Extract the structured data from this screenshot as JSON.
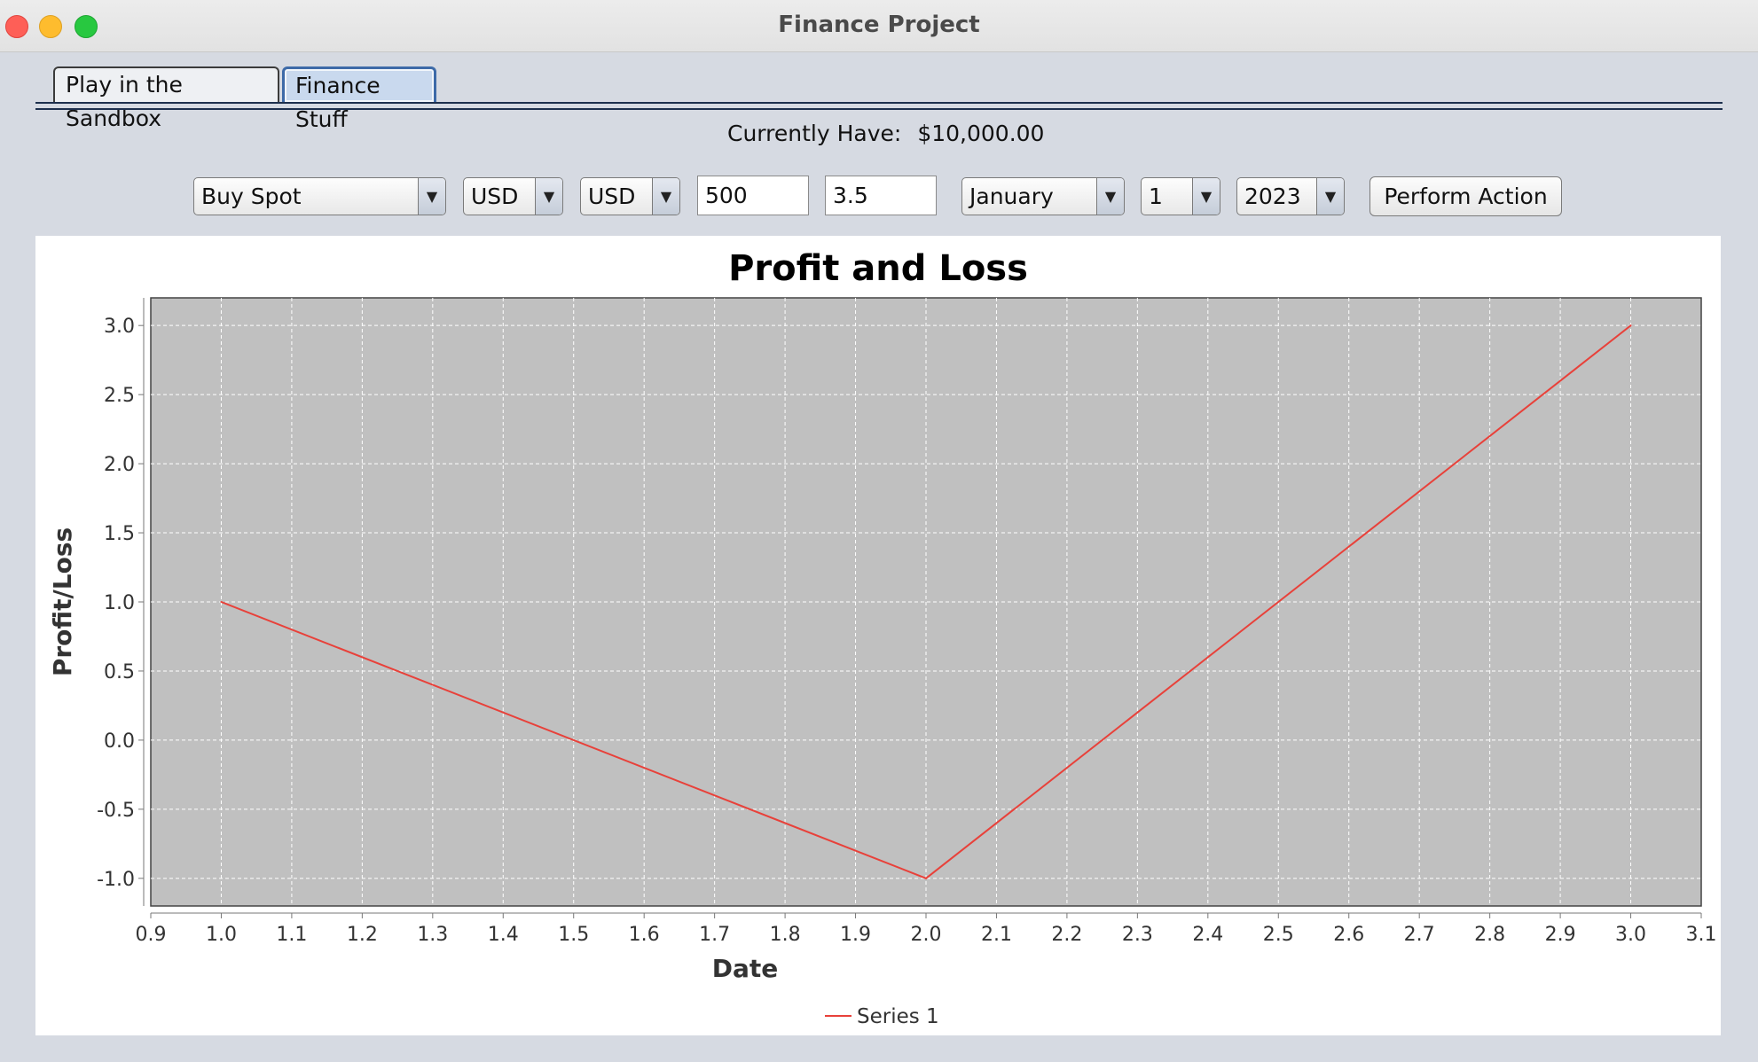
{
  "window": {
    "title": "Finance Project"
  },
  "tabs": [
    {
      "label": "Play in the Sandbox",
      "selected": false
    },
    {
      "label": "Finance Stuff",
      "selected": true
    }
  ],
  "balance": {
    "label": "Currently Have:",
    "value": "$10,000.00"
  },
  "controls": {
    "action": {
      "value": "Buy Spot"
    },
    "currency_from": {
      "value": "USD"
    },
    "currency_to": {
      "value": "USD"
    },
    "amount": {
      "value": "500"
    },
    "rate": {
      "value": "3.5"
    },
    "month": {
      "value": "January"
    },
    "day": {
      "value": "1"
    },
    "year": {
      "value": "2023"
    },
    "perform_label": "Perform Action"
  },
  "icons": {
    "dropdown": "triangle-down-icon"
  },
  "colors": {
    "series": "#e8413a",
    "plot_bg": "#c0c0c0",
    "tab_selected": "#3d6aa8"
  },
  "chart_data": {
    "type": "line",
    "title": "Profit and Loss",
    "xlabel": "Date",
    "ylabel": "Profit/Loss",
    "xlim": [
      0.9,
      3.1
    ],
    "ylim": [
      -1.2,
      3.2
    ],
    "xticks": [
      "0.9",
      "1.0",
      "1.1",
      "1.2",
      "1.3",
      "1.4",
      "1.5",
      "1.6",
      "1.7",
      "1.8",
      "1.9",
      "2.0",
      "2.1",
      "2.2",
      "2.3",
      "2.4",
      "2.5",
      "2.6",
      "2.7",
      "2.8",
      "2.9",
      "3.0",
      "3.1"
    ],
    "yticks": [
      "3.0",
      "2.5",
      "2.0",
      "1.5",
      "1.0",
      "0.5",
      "0.0",
      "-0.5",
      "-1.0"
    ],
    "grid": true,
    "legend_position": "bottom",
    "series": [
      {
        "name": "Series 1",
        "x": [
          1.0,
          2.0,
          3.0
        ],
        "y": [
          1.0,
          -1.0,
          3.0
        ],
        "color": "#e8413a"
      }
    ]
  }
}
